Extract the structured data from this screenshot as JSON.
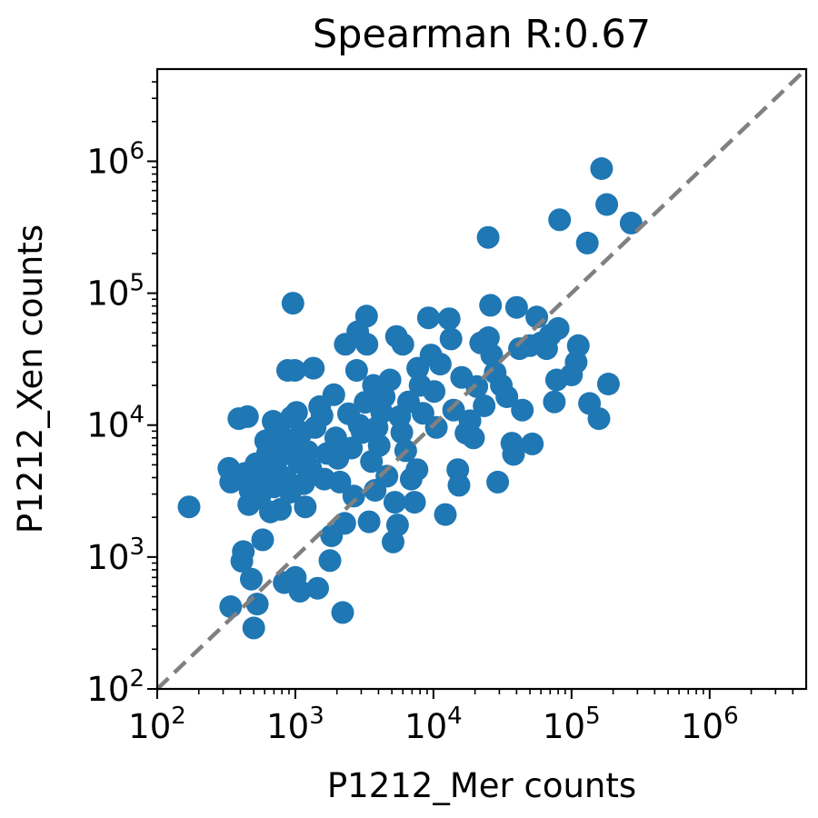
{
  "chart_data": {
    "type": "scatter",
    "title": "Spearman R:0.67",
    "xlabel": "P1212_Mer counts",
    "ylabel": "P1212_Xen counts",
    "x_scale": "log",
    "y_scale": "log",
    "xlim": [
      100,
      5000000
    ],
    "ylim": [
      100,
      5000000
    ],
    "major_ticks": [
      {
        "base": "10",
        "exp": "2",
        "value": 100
      },
      {
        "base": "10",
        "exp": "3",
        "value": 1000
      },
      {
        "base": "10",
        "exp": "4",
        "value": 10000
      },
      {
        "base": "10",
        "exp": "5",
        "value": 100000
      },
      {
        "base": "10",
        "exp": "6",
        "value": 1000000
      }
    ],
    "grid": false,
    "marker_color": "#1f77b4",
    "reference_line": {
      "style": "dashed",
      "color": "#808080",
      "description": "y = x"
    },
    "points": [
      [
        170,
        2400
      ],
      [
        330,
        4700
      ],
      [
        340,
        3700
      ],
      [
        340,
        420
      ],
      [
        390,
        11200
      ],
      [
        410,
        930
      ],
      [
        420,
        1100
      ],
      [
        430,
        4300
      ],
      [
        450,
        11600
      ],
      [
        460,
        2500
      ],
      [
        470,
        3200
      ],
      [
        480,
        680
      ],
      [
        500,
        290
      ],
      [
        520,
        5100
      ],
      [
        530,
        440
      ],
      [
        550,
        2800
      ],
      [
        570,
        3900
      ],
      [
        580,
        1350
      ],
      [
        610,
        7600
      ],
      [
        630,
        6200
      ],
      [
        650,
        4500
      ],
      [
        660,
        2200
      ],
      [
        690,
        10700
      ],
      [
        700,
        3400
      ],
      [
        720,
        9000
      ],
      [
        750,
        5600
      ],
      [
        780,
        2300
      ],
      [
        800,
        8200
      ],
      [
        830,
        640
      ],
      [
        850,
        4000
      ],
      [
        880,
        26000
      ],
      [
        900,
        6800
      ],
      [
        920,
        3100
      ],
      [
        940,
        11500
      ],
      [
        960,
        84000
      ],
      [
        990,
        26000
      ],
      [
        1000,
        700
      ],
      [
        1020,
        12500
      ],
      [
        1060,
        5200
      ],
      [
        1080,
        550
      ],
      [
        1110,
        8800
      ],
      [
        1150,
        3600
      ],
      [
        1180,
        2400
      ],
      [
        1230,
        6300
      ],
      [
        1290,
        4700
      ],
      [
        1350,
        27000
      ],
      [
        1390,
        9600
      ],
      [
        1450,
        580
      ],
      [
        1500,
        13800
      ],
      [
        1560,
        11800
      ],
      [
        1620,
        3900
      ],
      [
        1700,
        6100
      ],
      [
        1780,
        940
      ],
      [
        1830,
        1450
      ],
      [
        1900,
        17000
      ],
      [
        1960,
        8000
      ],
      [
        2030,
        5600
      ],
      [
        2100,
        3700
      ],
      [
        2200,
        380
      ],
      [
        2280,
        1800
      ],
      [
        2300,
        41000
      ],
      [
        2430,
        12200
      ],
      [
        2550,
        6700
      ],
      [
        2650,
        2900
      ],
      [
        2780,
        26000
      ],
      [
        2830,
        51000
      ],
      [
        2900,
        10000
      ],
      [
        3050,
        8800
      ],
      [
        3200,
        14900
      ],
      [
        3280,
        67000
      ],
      [
        3300,
        41000
      ],
      [
        3420,
        1850
      ],
      [
        3560,
        5300
      ],
      [
        3680,
        20000
      ],
      [
        3780,
        3200
      ],
      [
        3900,
        9600
      ],
      [
        4050,
        7000
      ],
      [
        4220,
        12500
      ],
      [
        4400,
        16400
      ],
      [
        4600,
        4100
      ],
      [
        4850,
        22000
      ],
      [
        5100,
        1300
      ],
      [
        5250,
        2600
      ],
      [
        5400,
        47000
      ],
      [
        5500,
        1750
      ],
      [
        5700,
        11600
      ],
      [
        5900,
        8800
      ],
      [
        6000,
        41000
      ],
      [
        6300,
        6400
      ],
      [
        6600,
        15000
      ],
      [
        6900,
        3900
      ],
      [
        7300,
        2600
      ],
      [
        7600,
        4600
      ],
      [
        7700,
        27000
      ],
      [
        8000,
        20000
      ],
      [
        8400,
        12300
      ],
      [
        9200,
        65000
      ],
      [
        9600,
        34000
      ],
      [
        10100,
        18000
      ],
      [
        10500,
        9600
      ],
      [
        11200,
        29000
      ],
      [
        12200,
        2100
      ],
      [
        13000,
        64000
      ],
      [
        13400,
        45000
      ],
      [
        14000,
        13000
      ],
      [
        15000,
        4600
      ],
      [
        15300,
        3500
      ],
      [
        16000,
        23000
      ],
      [
        17200,
        8700
      ],
      [
        18400,
        10800
      ],
      [
        19500,
        8000
      ],
      [
        20600,
        19600
      ],
      [
        22000,
        42000
      ],
      [
        23300,
        14000
      ],
      [
        24900,
        265000
      ],
      [
        25000,
        46000
      ],
      [
        25900,
        81000
      ],
      [
        26400,
        34000
      ],
      [
        28000,
        25000
      ],
      [
        29200,
        3700
      ],
      [
        31000,
        20000
      ],
      [
        34000,
        16400
      ],
      [
        37000,
        7300
      ],
      [
        38000,
        6000
      ],
      [
        40000,
        78000
      ],
      [
        42000,
        38000
      ],
      [
        44000,
        13000
      ],
      [
        50000,
        40000
      ],
      [
        52000,
        7200
      ],
      [
        56000,
        66000
      ],
      [
        60000,
        42000
      ],
      [
        66000,
        38000
      ],
      [
        70000,
        48000
      ],
      [
        75000,
        15000
      ],
      [
        78000,
        22000
      ],
      [
        80000,
        54000
      ],
      [
        82000,
        360000
      ],
      [
        100000,
        24000
      ],
      [
        108000,
        30000
      ],
      [
        112000,
        40000
      ],
      [
        130000,
        240000
      ],
      [
        135000,
        14600
      ],
      [
        158000,
        11200
      ],
      [
        165000,
        880000
      ],
      [
        180000,
        470000
      ],
      [
        185000,
        20500
      ],
      [
        270000,
        340000
      ]
    ]
  }
}
